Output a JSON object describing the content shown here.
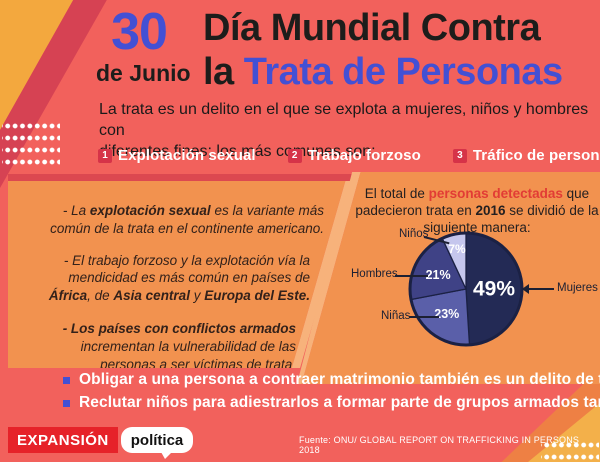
{
  "colors": {
    "background": "#f2615c",
    "panel_orange": "#f2924f",
    "panel_stripe": "#f7b27b",
    "accent_blue": "#4350d4",
    "badge_crimson": "#d63348",
    "highlight_red": "#e23c35",
    "logo_red": "#e62229",
    "deco_yellow": "#f3a83e",
    "deco_crimson": "#d64253"
  },
  "header": {
    "date_number": "30",
    "date_text": "de Junio",
    "title_line1": "Día Mundial Contra",
    "title_line2_prefix": "la ",
    "title_line2_highlight": "Trata de Personas"
  },
  "intro": {
    "line1": "La trata es un delito en el que se explota a mujeres, niños y hombres con",
    "line2": "diferentes fines; los más comunes son:"
  },
  "numbered_items": [
    {
      "number": "1",
      "label": "Explotación sexual"
    },
    {
      "number": "2",
      "label": "Trabajo forzoso"
    },
    {
      "number": "3",
      "label": "Tráfico de personas"
    }
  ],
  "left_panel": {
    "item1": {
      "pre": "- La ",
      "bold": "explotación sexual",
      "post": " es la variante más común de la trata en el continente americano."
    },
    "item2": {
      "pre": "- El trabajo forzoso y la explotación vía la mendicidad es más común en países de ",
      "bold1": "África",
      "mid1": ", de ",
      "bold2": "Asia central",
      "mid2": " y ",
      "bold3": "Europa del Este."
    },
    "item3": {
      "bold": "- Los países con conflictos armados",
      "post": " incrementan la vulnerabilidad de las personas a ser víctimas de trata."
    }
  },
  "right_panel": {
    "heading_pre": "El total de ",
    "heading_highlight": "personas detectadas",
    "heading_mid": " que padecieron trata en ",
    "heading_year": "2016",
    "heading_post": " se dividió de la siguiente manera:"
  },
  "chart_data": {
    "type": "pie",
    "title": "El total de personas detectadas que padecieron trata en 2016 se dividió de la siguiente manera:",
    "start_angle_deg": 0,
    "direction": "clockwise",
    "outline_color": "#1b2144",
    "legend_position": "outside-callouts",
    "slices": [
      {
        "label": "Mujeres",
        "value": 49,
        "pct_label": "49%",
        "color": "#232a55",
        "label_radius": 0.5,
        "label_size": 21
      },
      {
        "label": "Niñas",
        "value": 23,
        "pct_label": "23%",
        "color": "#5a5fa9",
        "label_radius": 0.56,
        "label_size": 12.5
      },
      {
        "label": "Hombres",
        "value": 21,
        "pct_label": "21%",
        "color": "#3f4286",
        "label_radius": 0.56,
        "label_size": 12.5
      },
      {
        "label": "Niños",
        "value": 7,
        "pct_label": "7%",
        "color": "#c5c6ed",
        "label_radius": 0.74,
        "label_size": 12
      }
    ]
  },
  "notes": {
    "items": [
      {
        "text": "Obligar a una persona a contraer matrimonio también es un delito de trata."
      },
      {
        "text": "Reclutar niños para adiestrarlos a formar parte de grupos armados también."
      }
    ]
  },
  "footer": {
    "brand_primary": "EXPANSIÓN",
    "brand_secondary": "política",
    "source": "Fuente: ONU/ GLOBAL REPORT ON TRAFFICKING IN PERSONS 2018"
  }
}
